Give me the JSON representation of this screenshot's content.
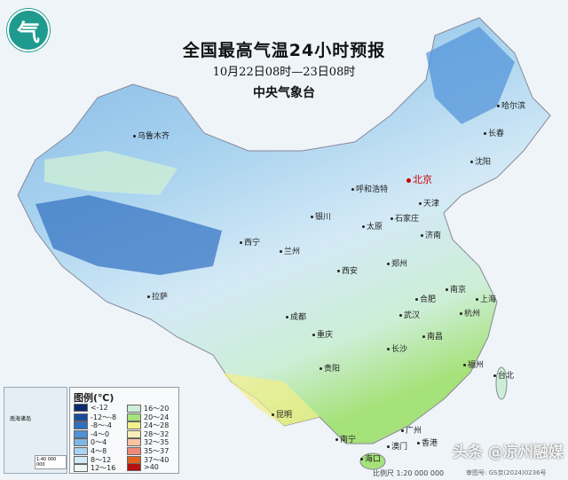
{
  "logo": {
    "glyph": "气"
  },
  "header": {
    "title": "全国最高气温24小时预报",
    "period": "10月22日08时—23日08时",
    "issuer": "中央气象台"
  },
  "cities": {
    "beijing": "北京",
    "urumqi": "乌鲁木齐",
    "harbin": "哈尔滨",
    "changchun": "长春",
    "shenyang": "沈阳",
    "tianjin": "天津",
    "hohhot": "呼和浩特",
    "shijiazhuang": "石家庄",
    "taiyuan": "太原",
    "yinchuan": "银川",
    "xining": "西宁",
    "lanzhou": "兰州",
    "jinan": "济南",
    "zhengzhou": "郑州",
    "xian": "西安",
    "hefei": "合肥",
    "nanjing": "南京",
    "shanghai": "上海",
    "hangzhou": "杭州",
    "lhasa": "拉萨",
    "chengdu": "成都",
    "wuhan": "武汉",
    "chongqing": "重庆",
    "changsha": "长沙",
    "nanchang": "南昌",
    "guiyang": "贵阳",
    "fuzhou": "福州",
    "taipei": "台北",
    "kunming": "昆明",
    "nanning": "南宁",
    "guangzhou": "广州",
    "macau": "澳门",
    "hongkong": "香港",
    "haikou": "海口"
  },
  "inset": {
    "scale": "1:40 000 000",
    "label": "南海诸岛"
  },
  "legend": {
    "title": "图例(℃)",
    "items": [
      {
        "label": "<-12",
        "color": "#0b2a6b"
      },
      {
        "label": "-12～-8",
        "color": "#1a4c9c"
      },
      {
        "label": "-8～-4",
        "color": "#2f6fc0"
      },
      {
        "label": "-4～0",
        "color": "#4f92d8"
      },
      {
        "label": "0～4",
        "color": "#7fb6e6"
      },
      {
        "label": "4～8",
        "color": "#a9d3ef"
      },
      {
        "label": "8～12",
        "color": "#d3e9f6"
      },
      {
        "label": "12～16",
        "color": "#eef6f6"
      },
      {
        "label": "16～20",
        "color": "#cdeed6"
      },
      {
        "label": "20～24",
        "color": "#a6e27a"
      },
      {
        "label": "24～28",
        "color": "#f3f08a"
      },
      {
        "label": "28～32",
        "color": "#f6efb8"
      },
      {
        "label": "32～35",
        "color": "#f7c3a3"
      },
      {
        "label": "35～37",
        "color": "#ee8a78"
      },
      {
        "label": "37～40",
        "color": "#e0621e"
      },
      {
        "label": ">40",
        "color": "#b80f0f"
      }
    ]
  },
  "footer": {
    "scale": "比例尺 1:20 000 000",
    "approval": "审图号: GS京(2024)0236号",
    "watermark": "头条 @凉州融媒"
  }
}
